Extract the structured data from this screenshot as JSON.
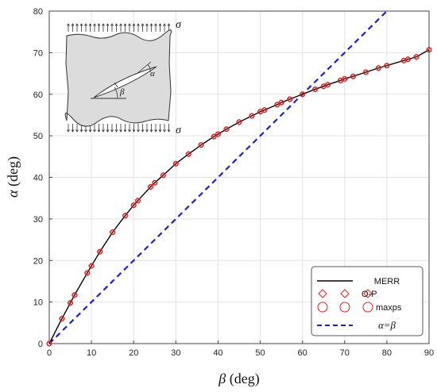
{
  "chart_data": {
    "type": "line",
    "xlabel": {
      "symbol": "β",
      "unit": "(deg)"
    },
    "ylabel": {
      "symbol": "α",
      "unit": "(deg)"
    },
    "xlim": [
      0,
      90
    ],
    "ylim": [
      0,
      80
    ],
    "xticks": [
      "0",
      "10",
      "20",
      "30",
      "40",
      "50",
      "60",
      "70",
      "80",
      "90"
    ],
    "yticks": [
      "0",
      "10",
      "20",
      "30",
      "40",
      "50",
      "60",
      "70",
      "80"
    ],
    "grid": true,
    "legend_position": "bottom-right",
    "series": [
      {
        "name": "MERR",
        "style": "solid-line",
        "color": "#000000",
        "x": [
          0,
          3,
          5,
          6,
          9,
          10,
          12,
          15,
          18,
          20,
          21,
          24,
          25,
          27,
          30,
          33,
          36,
          39,
          40,
          42,
          45,
          48,
          50,
          51,
          54,
          55,
          57,
          60,
          63,
          65,
          66,
          69,
          70,
          72,
          75,
          78,
          80,
          84,
          85,
          87,
          90
        ],
        "y": [
          0,
          6,
          9.8,
          11.7,
          17,
          18.7,
          22.1,
          26.8,
          30.8,
          33.3,
          34.4,
          37.7,
          38.7,
          40.5,
          43.3,
          45.6,
          47.8,
          49.8,
          50.4,
          51.6,
          53.3,
          54.8,
          55.8,
          56.2,
          57.5,
          58,
          58.8,
          60,
          61.2,
          61.9,
          62.3,
          63.3,
          63.7,
          64.3,
          65.3,
          66.3,
          66.9,
          68.1,
          68.4,
          69,
          70.7
        ]
      },
      {
        "name": "O-P",
        "style": "diamond-markers",
        "color": "#e02020",
        "x": [
          0,
          3,
          5,
          6,
          9,
          10,
          12,
          15,
          18,
          20,
          21,
          24,
          25,
          27,
          30,
          33,
          36,
          39,
          40,
          42,
          45,
          48,
          50,
          51,
          54,
          55,
          57,
          60,
          63,
          65,
          66,
          69,
          70,
          72,
          75,
          78,
          80,
          84,
          85,
          87,
          90
        ],
        "y": [
          0,
          6,
          9.8,
          11.7,
          17,
          18.7,
          22.1,
          26.8,
          30.8,
          33.3,
          34.4,
          37.7,
          38.7,
          40.5,
          43.3,
          45.6,
          47.8,
          49.8,
          50.4,
          51.6,
          53.3,
          54.8,
          55.8,
          56.2,
          57.5,
          58,
          58.8,
          60,
          61.2,
          61.9,
          62.3,
          63.3,
          63.7,
          64.3,
          65.3,
          66.3,
          66.9,
          68.1,
          68.4,
          69,
          70.7
        ]
      },
      {
        "name": "maxps",
        "style": "circle-markers",
        "color": "#e02020",
        "x": [
          0,
          3,
          5,
          6,
          9,
          10,
          12,
          15,
          18,
          20,
          21,
          24,
          25,
          27,
          30,
          33,
          36,
          39,
          40,
          42,
          45,
          48,
          50,
          51,
          54,
          55,
          57,
          60,
          63,
          65,
          66,
          69,
          70,
          72,
          75,
          78,
          80,
          84,
          85,
          87,
          90
        ],
        "y": [
          0,
          6,
          9.8,
          11.7,
          17,
          18.7,
          22.1,
          26.8,
          30.8,
          33.3,
          34.4,
          37.7,
          38.7,
          40.5,
          43.3,
          45.6,
          47.8,
          49.8,
          50.4,
          51.6,
          53.3,
          54.8,
          55.8,
          56.2,
          57.5,
          58,
          58.8,
          60,
          61.2,
          61.9,
          62.3,
          63.3,
          63.7,
          64.3,
          65.3,
          66.3,
          66.9,
          68.1,
          68.4,
          69,
          70.7
        ]
      },
      {
        "name": "α=β",
        "style": "dashed-line",
        "color": "#1f1fd0",
        "x": [
          0,
          80
        ],
        "y": [
          0,
          80
        ]
      }
    ],
    "inset": {
      "sigma_top": "σ",
      "sigma_bottom": "σ",
      "alpha_label": "α",
      "beta_label": "β"
    }
  }
}
